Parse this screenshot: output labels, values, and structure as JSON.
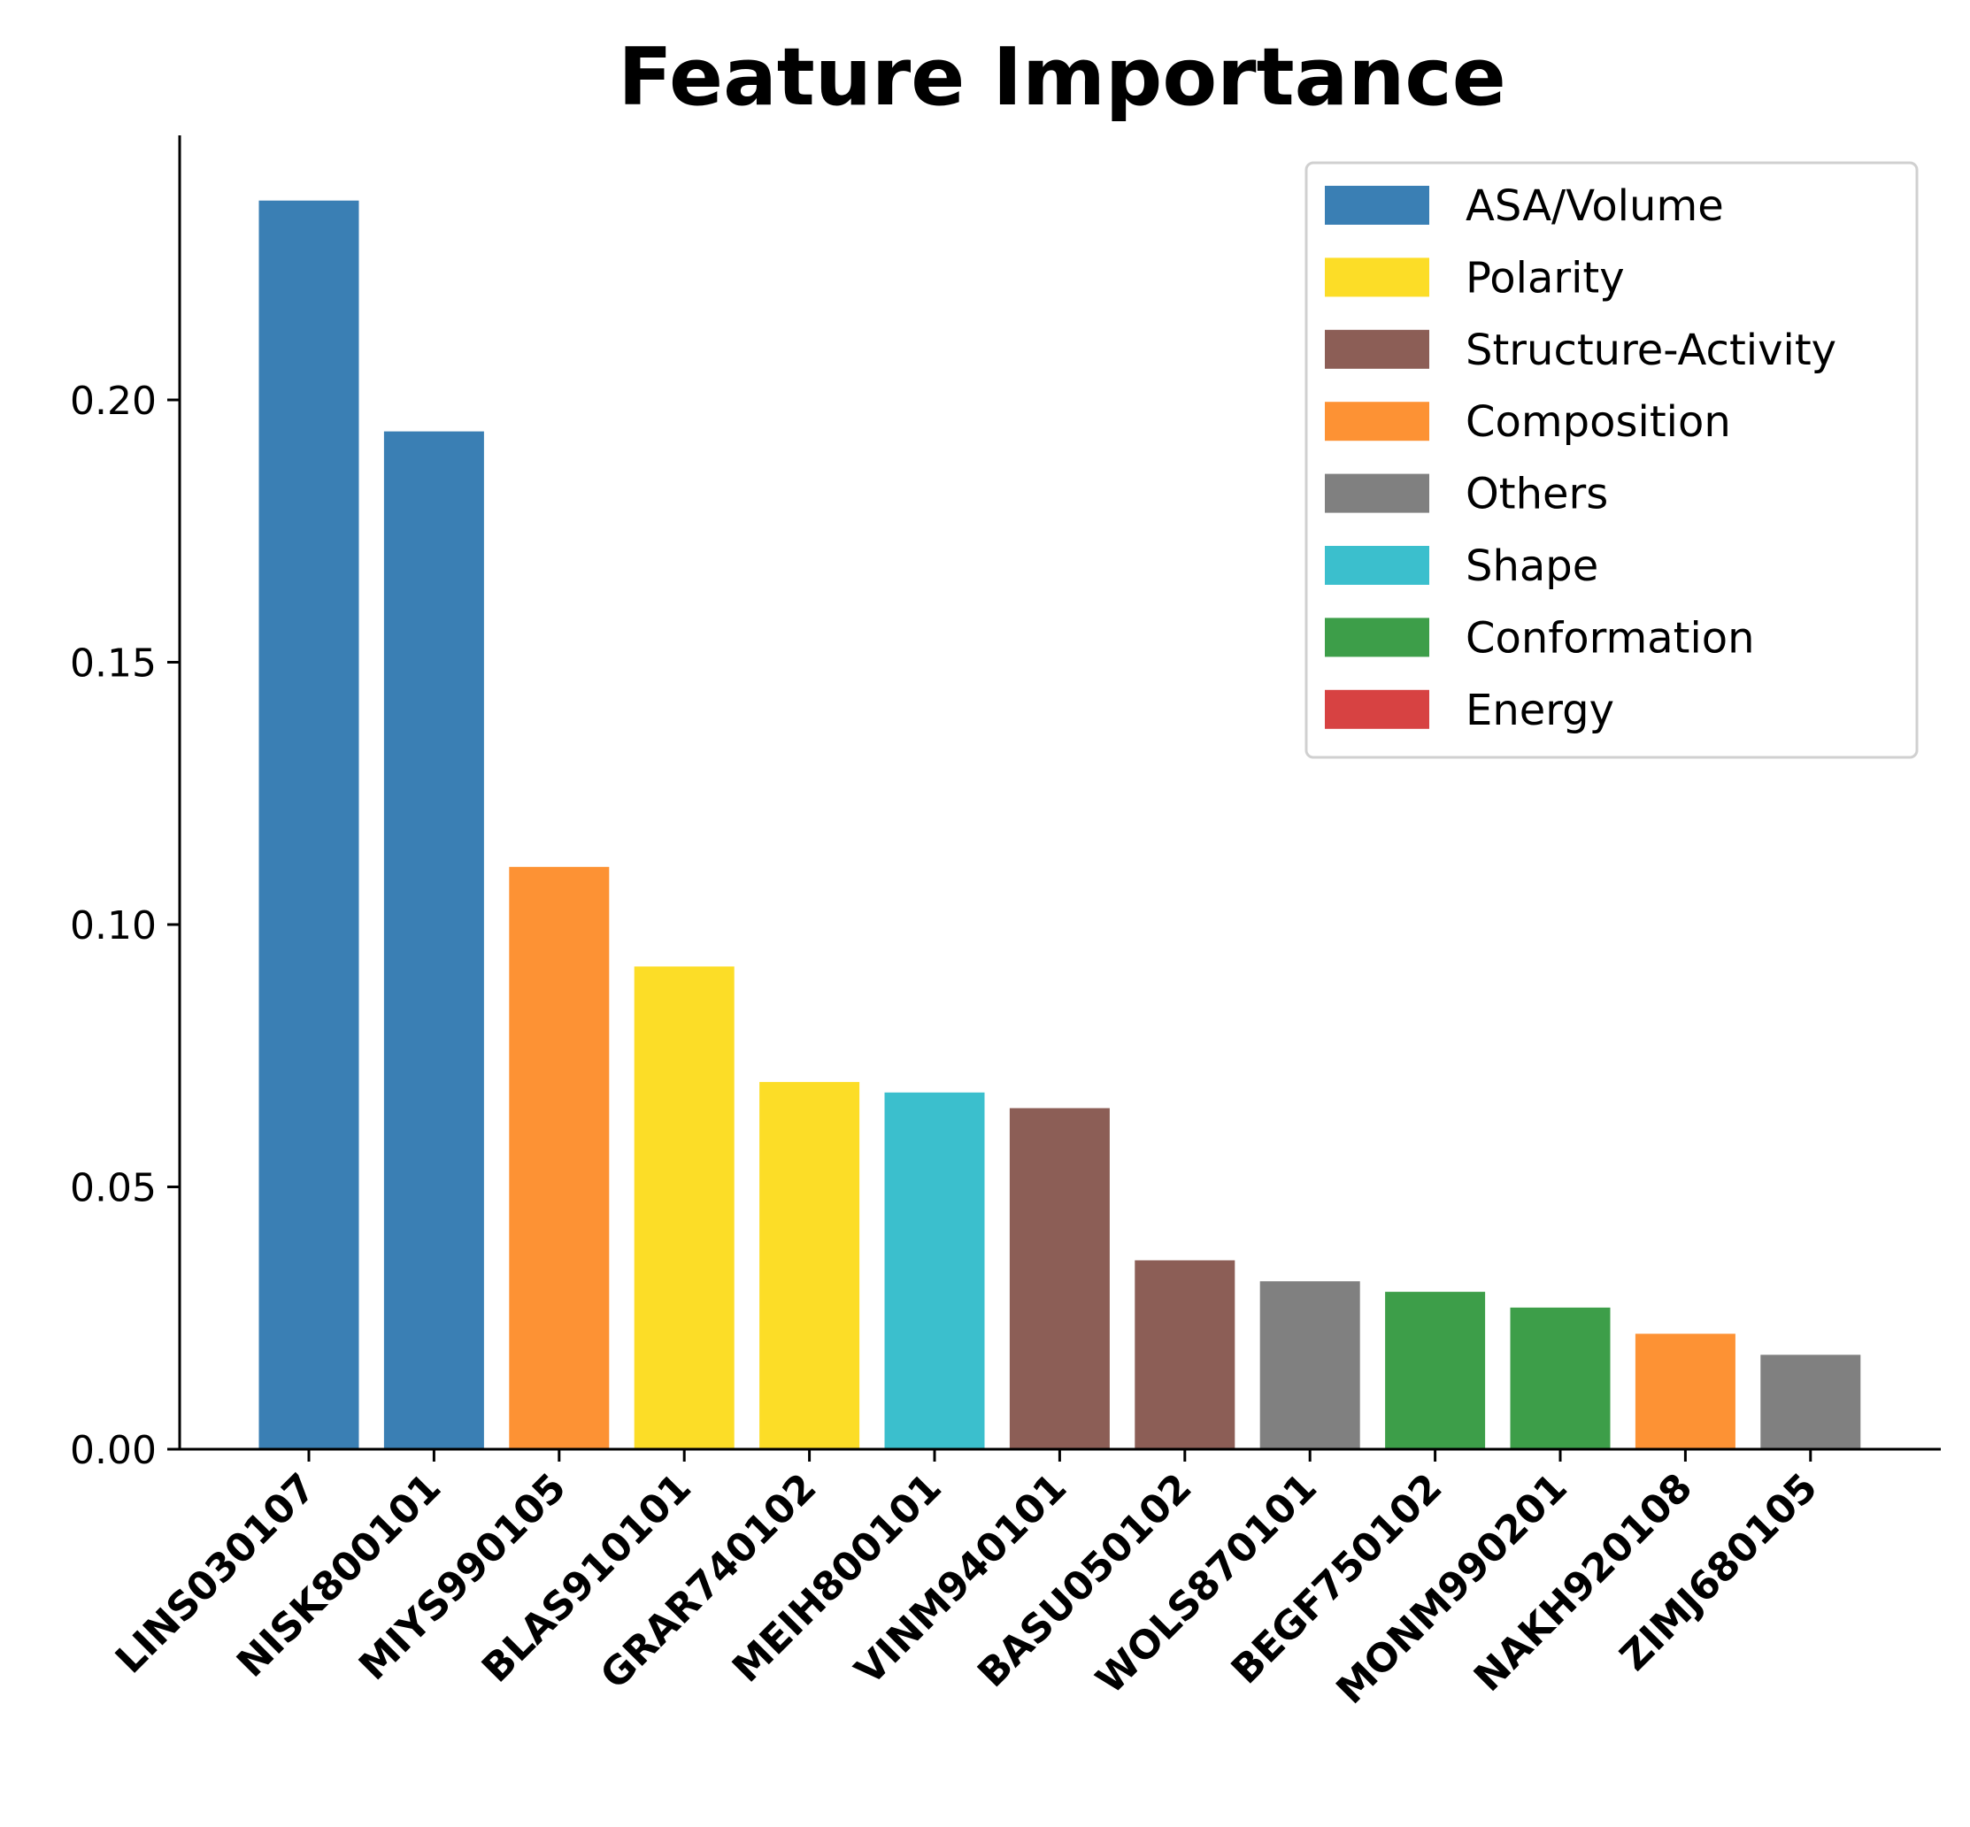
{
  "chart_data": {
    "type": "bar",
    "title": "Feature Importance",
    "xlabel": "",
    "ylabel": "",
    "ylim": [
      0,
      0.25
    ],
    "yticks": [
      0.0,
      0.05,
      0.1,
      0.15,
      0.2
    ],
    "ytick_labels": [
      "0.00",
      "0.05",
      "0.10",
      "0.15",
      "0.20"
    ],
    "grid": false,
    "legend_position": "top-right",
    "categories": [
      "LINS030107",
      "NISK800101",
      "MIYS990105",
      "BLAS910101",
      "GRAR740102",
      "MEIH800101",
      "VINM940101",
      "BASU050102",
      "WOLS870101",
      "BEGF750102",
      "MONM990201",
      "NAKH920108",
      "ZIMJ680105"
    ],
    "values": [
      0.238,
      0.194,
      0.111,
      0.092,
      0.07,
      0.068,
      0.065,
      0.036,
      0.032,
      0.03,
      0.027,
      0.022,
      0.018
    ],
    "bar_groups": [
      "ASA/Volume",
      "ASA/Volume",
      "Composition",
      "Polarity",
      "Polarity",
      "Shape",
      "Structure-Activity",
      "Structure-Activity",
      "Others",
      "Conformation",
      "Conformation",
      "Composition",
      "Others"
    ],
    "legend": [
      {
        "name": "ASA/Volume",
        "color": "#3a7fb4"
      },
      {
        "name": "Polarity",
        "color": "#fcdd27"
      },
      {
        "name": "Structure-Activity",
        "color": "#8c5e56"
      },
      {
        "name": "Composition",
        "color": "#fd9234"
      },
      {
        "name": "Others",
        "color": "#808080"
      },
      {
        "name": "Shape",
        "color": "#3bbfcd"
      },
      {
        "name": "Conformation",
        "color": "#3d9e49"
      },
      {
        "name": "Energy",
        "color": "#d74242"
      }
    ]
  }
}
